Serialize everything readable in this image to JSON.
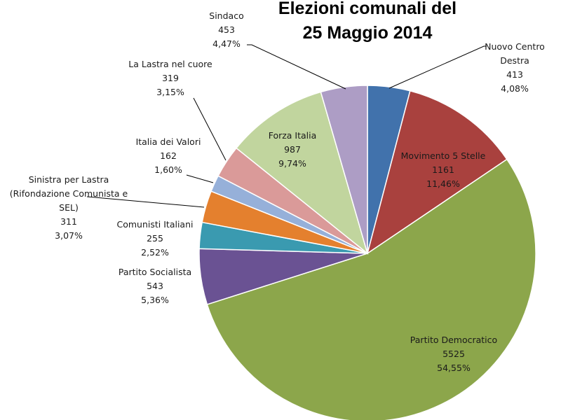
{
  "chart_data": {
    "type": "pie",
    "title_lines": [
      "Elezioni comunali del",
      "25 Maggio 2014"
    ],
    "slices": [
      {
        "id": "nuovo-centro-destra",
        "name_lines": [
          "Nuovo Centro",
          "Destra"
        ],
        "value": 413,
        "percent_label": "4,08%",
        "color": "#4172AC"
      },
      {
        "id": "movimento-5-stelle",
        "name_lines": [
          "Movimento 5 Stelle"
        ],
        "value": 1161,
        "percent_label": "11,46%",
        "color": "#A9413E"
      },
      {
        "id": "partito-democratico",
        "name_lines": [
          "Partito Democratico"
        ],
        "value": 5525,
        "percent_label": "54,55%",
        "color": "#8CA64B"
      },
      {
        "id": "partito-socialista",
        "name_lines": [
          "Partito Socialista"
        ],
        "value": 543,
        "percent_label": "5,36%",
        "color": "#6A5293"
      },
      {
        "id": "comunisti-italiani",
        "name_lines": [
          "Comunisti Italiani"
        ],
        "value": 255,
        "percent_label": "2,52%",
        "color": "#3A9AB0"
      },
      {
        "id": "sinistra-per-lastra",
        "name_lines": [
          "Sinistra per Lastra",
          "(Rifondazione Comunista e",
          "SEL)"
        ],
        "value": 311,
        "percent_label": "3,07%",
        "color": "#E4802E"
      },
      {
        "id": "italia-dei-valori",
        "name_lines": [
          "Italia dei Valori"
        ],
        "value": 162,
        "percent_label": "1,60%",
        "color": "#96B0D9"
      },
      {
        "id": "la-lastra-nel-cuore",
        "name_lines": [
          "La Lastra nel cuore"
        ],
        "value": 319,
        "percent_label": "3,15%",
        "color": "#DA9A99"
      },
      {
        "id": "forza-italia",
        "name_lines": [
          "Forza Italia"
        ],
        "value": 987,
        "percent_label": "9,74%",
        "color": "#C1D59E"
      },
      {
        "id": "sindaco",
        "name_lines": [
          "Sindaco"
        ],
        "value": 453,
        "percent_label": "4,47%",
        "color": "#AD9DC5"
      }
    ]
  }
}
